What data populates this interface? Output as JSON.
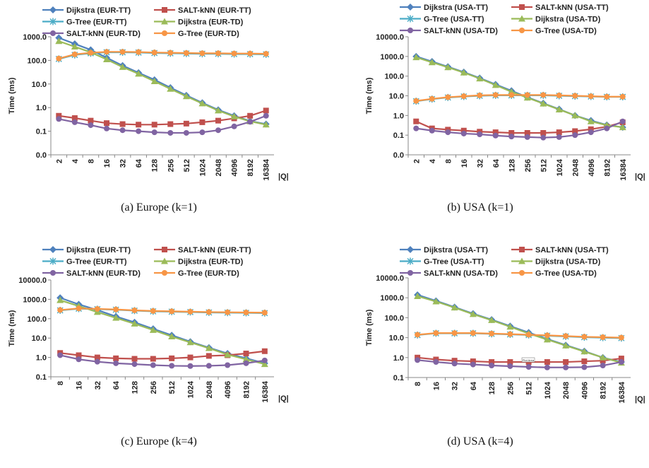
{
  "chart_data": [
    {
      "type": "line",
      "caption": "(a)  Europe (k=1)",
      "y_label": "Time (ms)",
      "x_label": "|Q|",
      "log_y": true,
      "categories": [
        "2",
        "4",
        "8",
        "16",
        "32",
        "64",
        "128",
        "256",
        "512",
        "1024",
        "2048",
        "4096",
        "8192",
        "16384"
      ],
      "ylim": [
        0.01,
        1000
      ],
      "yticks": [
        {
          "value": 0.01,
          "label": "0.0"
        },
        {
          "value": 0.1,
          "label": "0.1"
        },
        {
          "value": 1,
          "label": "1.0"
        },
        {
          "value": 10,
          "label": "10.0"
        },
        {
          "value": 100,
          "label": "100.0"
        },
        {
          "value": 1000,
          "label": "1000.0"
        }
      ],
      "series": [
        {
          "name": "Dijkstra (EUR-TT)",
          "color": "#4f81bd",
          "marker": "diamond",
          "values": [
            900,
            500,
            280,
            130,
            60,
            30,
            15,
            7,
            3.3,
            1.6,
            0.8,
            0.45,
            0.27,
            0.2
          ]
        },
        {
          "name": "SALT-kNN (EUR-TT)",
          "color": "#c0504d",
          "marker": "square",
          "values": [
            0.45,
            0.36,
            0.28,
            0.22,
            0.2,
            0.19,
            0.19,
            0.2,
            0.21,
            0.24,
            0.28,
            0.35,
            0.45,
            0.75
          ]
        },
        {
          "name": "G-Tree (EUR-TT)",
          "color": "#4bacc6",
          "marker": "cross",
          "values": [
            115,
            170,
            200,
            220,
            220,
            215,
            205,
            200,
            195,
            190,
            190,
            185,
            185,
            180
          ]
        },
        {
          "name": "Dijkstra (EUR-TD)",
          "color": "#9bbb59",
          "marker": "triangle",
          "values": [
            650,
            380,
            220,
            110,
            52,
            27,
            13,
            6.2,
            3,
            1.5,
            0.75,
            0.42,
            0.26,
            0.19
          ]
        },
        {
          "name": "SALT-kNN (EUR-TD)",
          "color": "#8064a2",
          "marker": "circle",
          "values": [
            0.33,
            0.24,
            0.18,
            0.13,
            0.11,
            0.1,
            0.09,
            0.085,
            0.085,
            0.09,
            0.11,
            0.16,
            0.25,
            0.45
          ]
        },
        {
          "name": "G-Tree (EUR-TD)",
          "color": "#f79646",
          "marker": "circle",
          "values": [
            120,
            180,
            210,
            230,
            230,
            225,
            215,
            210,
            205,
            200,
            200,
            195,
            195,
            190
          ]
        }
      ]
    },
    {
      "type": "line",
      "caption": "(b)  USA (k=1)",
      "y_label": "Time (ms)",
      "x_label": "|Q|",
      "log_y": true,
      "categories": [
        "2",
        "4",
        "8",
        "16",
        "32",
        "64",
        "128",
        "256",
        "512",
        "1024",
        "2048",
        "4096",
        "8192",
        "16384"
      ],
      "ylim": [
        0.01,
        10000
      ],
      "yticks": [
        {
          "value": 0.01,
          "label": "0.0"
        },
        {
          "value": 0.1,
          "label": "0.1"
        },
        {
          "value": 1,
          "label": "1.0"
        },
        {
          "value": 10,
          "label": "10.0"
        },
        {
          "value": 100,
          "label": "100.0"
        },
        {
          "value": 1000,
          "label": "1000.0"
        },
        {
          "value": 10000,
          "label": "10000.0"
        }
      ],
      "series": [
        {
          "name": "Dijkstra (USA-TT)",
          "color": "#4f81bd",
          "marker": "diamond",
          "values": [
            1000,
            550,
            300,
            160,
            80,
            38,
            18,
            8.5,
            4.2,
            2.1,
            1.0,
            0.55,
            0.33,
            0.25
          ]
        },
        {
          "name": "SALT-kNN (USA-TT)",
          "color": "#c0504d",
          "marker": "square",
          "values": [
            0.5,
            0.22,
            0.19,
            0.17,
            0.15,
            0.14,
            0.13,
            0.13,
            0.13,
            0.14,
            0.16,
            0.2,
            0.27,
            0.45
          ]
        },
        {
          "name": "G-Tree (USA-TT)",
          "color": "#4bacc6",
          "marker": "cross",
          "values": [
            5.3,
            6.8,
            8.2,
            9.2,
            10,
            10.5,
            10.5,
            10.5,
            10.5,
            10,
            9.6,
            9.2,
            8.8,
            8.8
          ]
        },
        {
          "name": "Dijkstra (USA-TD)",
          "color": "#9bbb59",
          "marker": "triangle",
          "values": [
            900,
            500,
            280,
            150,
            75,
            35,
            16,
            8,
            4,
            2,
            1,
            0.5,
            0.32,
            0.25
          ]
        },
        {
          "name": "SALT-kNN (USA-TD)",
          "color": "#8064a2",
          "marker": "circle",
          "values": [
            0.22,
            0.17,
            0.14,
            0.12,
            0.11,
            0.095,
            0.085,
            0.08,
            0.075,
            0.08,
            0.1,
            0.14,
            0.22,
            0.5
          ]
        },
        {
          "name": "G-Tree (USA-TD)",
          "color": "#f79646",
          "marker": "circle",
          "values": [
            5.5,
            7,
            8.5,
            9.5,
            10.5,
            11,
            11,
            11,
            11,
            10.5,
            10,
            9.5,
            9,
            9
          ]
        }
      ]
    },
    {
      "type": "line",
      "caption": "(c)  Europe (k=4)",
      "y_label": "Time (ms)",
      "x_label": "|Q|",
      "log_y": true,
      "categories": [
        "8",
        "16",
        "32",
        "64",
        "128",
        "256",
        "512",
        "1024",
        "2048",
        "4096",
        "8192",
        "16384"
      ],
      "ylim": [
        0.1,
        10000
      ],
      "yticks": [
        {
          "value": 0.1,
          "label": "0.1"
        },
        {
          "value": 1,
          "label": "1.0"
        },
        {
          "value": 10,
          "label": "10.0"
        },
        {
          "value": 100,
          "label": "100.0"
        },
        {
          "value": 1000,
          "label": "1000.0"
        },
        {
          "value": 10000,
          "label": "10000.0"
        }
      ],
      "series": [
        {
          "name": "Dijkstra (EUR-TT)",
          "color": "#4f81bd",
          "marker": "diamond",
          "values": [
            1200,
            550,
            280,
            130,
            65,
            30,
            14,
            6.5,
            3.2,
            1.6,
            0.9,
            0.5
          ]
        },
        {
          "name": "SALT-kNN (EUR-TT)",
          "color": "#c0504d",
          "marker": "square",
          "values": [
            1.7,
            1.3,
            1.0,
            0.9,
            0.85,
            0.85,
            0.9,
            1.0,
            1.2,
            1.3,
            1.6,
            2.1
          ]
        },
        {
          "name": "G-Tree (EUR-TT)",
          "color": "#4bacc6",
          "marker": "cross",
          "values": [
            270,
            330,
            310,
            290,
            260,
            240,
            230,
            220,
            210,
            205,
            200,
            195
          ]
        },
        {
          "name": "Dijkstra (EUR-TD)",
          "color": "#9bbb59",
          "marker": "triangle",
          "values": [
            900,
            450,
            220,
            110,
            55,
            26,
            12,
            6,
            3,
            1.4,
            0.8,
            0.45
          ]
        },
        {
          "name": "SALT-kNN (EUR-TD)",
          "color": "#8064a2",
          "marker": "circle",
          "values": [
            1.3,
            0.8,
            0.6,
            0.5,
            0.45,
            0.4,
            0.37,
            0.36,
            0.37,
            0.4,
            0.5,
            0.7
          ]
        },
        {
          "name": "G-Tree (EUR-TD)",
          "color": "#f79646",
          "marker": "circle",
          "values": [
            280,
            340,
            320,
            300,
            270,
            250,
            240,
            230,
            220,
            215,
            210,
            205
          ]
        }
      ]
    },
    {
      "type": "line",
      "caption": "(d)  USA (k=4)",
      "y_label": "Time (ms)",
      "x_label": "|Q|",
      "log_y": true,
      "annotation": "Plot Area",
      "categories": [
        "8",
        "16",
        "32",
        "64",
        "128",
        "256",
        "512",
        "1024",
        "2048",
        "4096",
        "8192",
        "16384"
      ],
      "ylim": [
        0.1,
        10000
      ],
      "yticks": [
        {
          "value": 0.1,
          "label": "0.1"
        },
        {
          "value": 1,
          "label": "1.0"
        },
        {
          "value": 10,
          "label": "10.0"
        },
        {
          "value": 100,
          "label": "100.0"
        },
        {
          "value": 1000,
          "label": "1000.0"
        },
        {
          "value": 10000,
          "label": "10000.0"
        }
      ],
      "series": [
        {
          "name": "Dijkstra (USA-TT)",
          "color": "#4f81bd",
          "marker": "diamond",
          "values": [
            1400,
            700,
            340,
            160,
            80,
            38,
            18,
            8.5,
            4.2,
            2.1,
            1.0,
            0.6
          ]
        },
        {
          "name": "SALT-kNN (USA-TT)",
          "color": "#c0504d",
          "marker": "square",
          "values": [
            1.0,
            0.8,
            0.7,
            0.65,
            0.6,
            0.6,
            0.6,
            0.6,
            0.6,
            0.65,
            0.7,
            0.9
          ]
        },
        {
          "name": "G-Tree (USA-TT)",
          "color": "#4bacc6",
          "marker": "cross",
          "values": [
            13.5,
            16.5,
            16.5,
            16.5,
            15.5,
            14.5,
            13.5,
            12.5,
            11.5,
            10.5,
            10,
            9.5
          ]
        },
        {
          "name": "Dijkstra (USA-TD)",
          "color": "#9bbb59",
          "marker": "triangle",
          "values": [
            1200,
            650,
            320,
            150,
            75,
            35,
            16,
            8,
            4,
            2,
            1,
            0.55
          ]
        },
        {
          "name": "SALT-kNN (USA-TD)",
          "color": "#8064a2",
          "marker": "circle",
          "values": [
            0.75,
            0.6,
            0.5,
            0.45,
            0.4,
            0.37,
            0.34,
            0.32,
            0.32,
            0.33,
            0.4,
            0.6
          ]
        },
        {
          "name": "G-Tree (USA-TD)",
          "color": "#f79646",
          "marker": "circle",
          "values": [
            14,
            17,
            17,
            17,
            16,
            15,
            14,
            13,
            12,
            11,
            10.5,
            10
          ]
        }
      ]
    }
  ]
}
